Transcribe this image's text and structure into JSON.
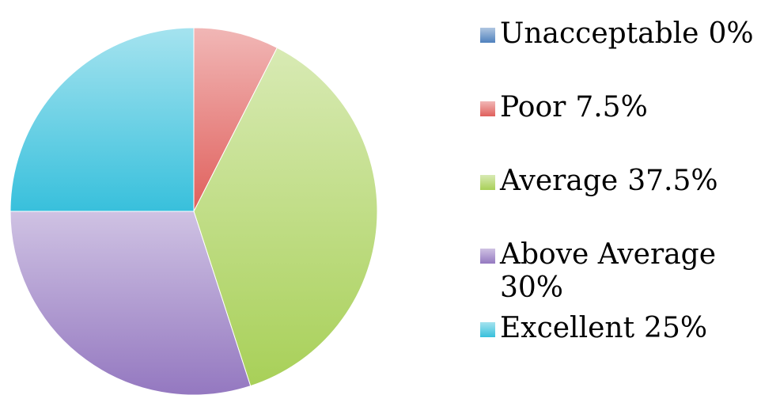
{
  "chart_data": {
    "type": "pie",
    "categories": [
      "Unacceptable",
      "Poor",
      "Average",
      "Above Average",
      "Excellent"
    ],
    "values": [
      0,
      7.5,
      37.5,
      30,
      25
    ],
    "value_labels": [
      "0%",
      "7.5%",
      "37.5%",
      "30%",
      "25%"
    ],
    "colors": [
      "#4f81bd",
      "#e0605c",
      "#a8d058",
      "#9478c0",
      "#38c0dc"
    ],
    "legend": "right"
  }
}
